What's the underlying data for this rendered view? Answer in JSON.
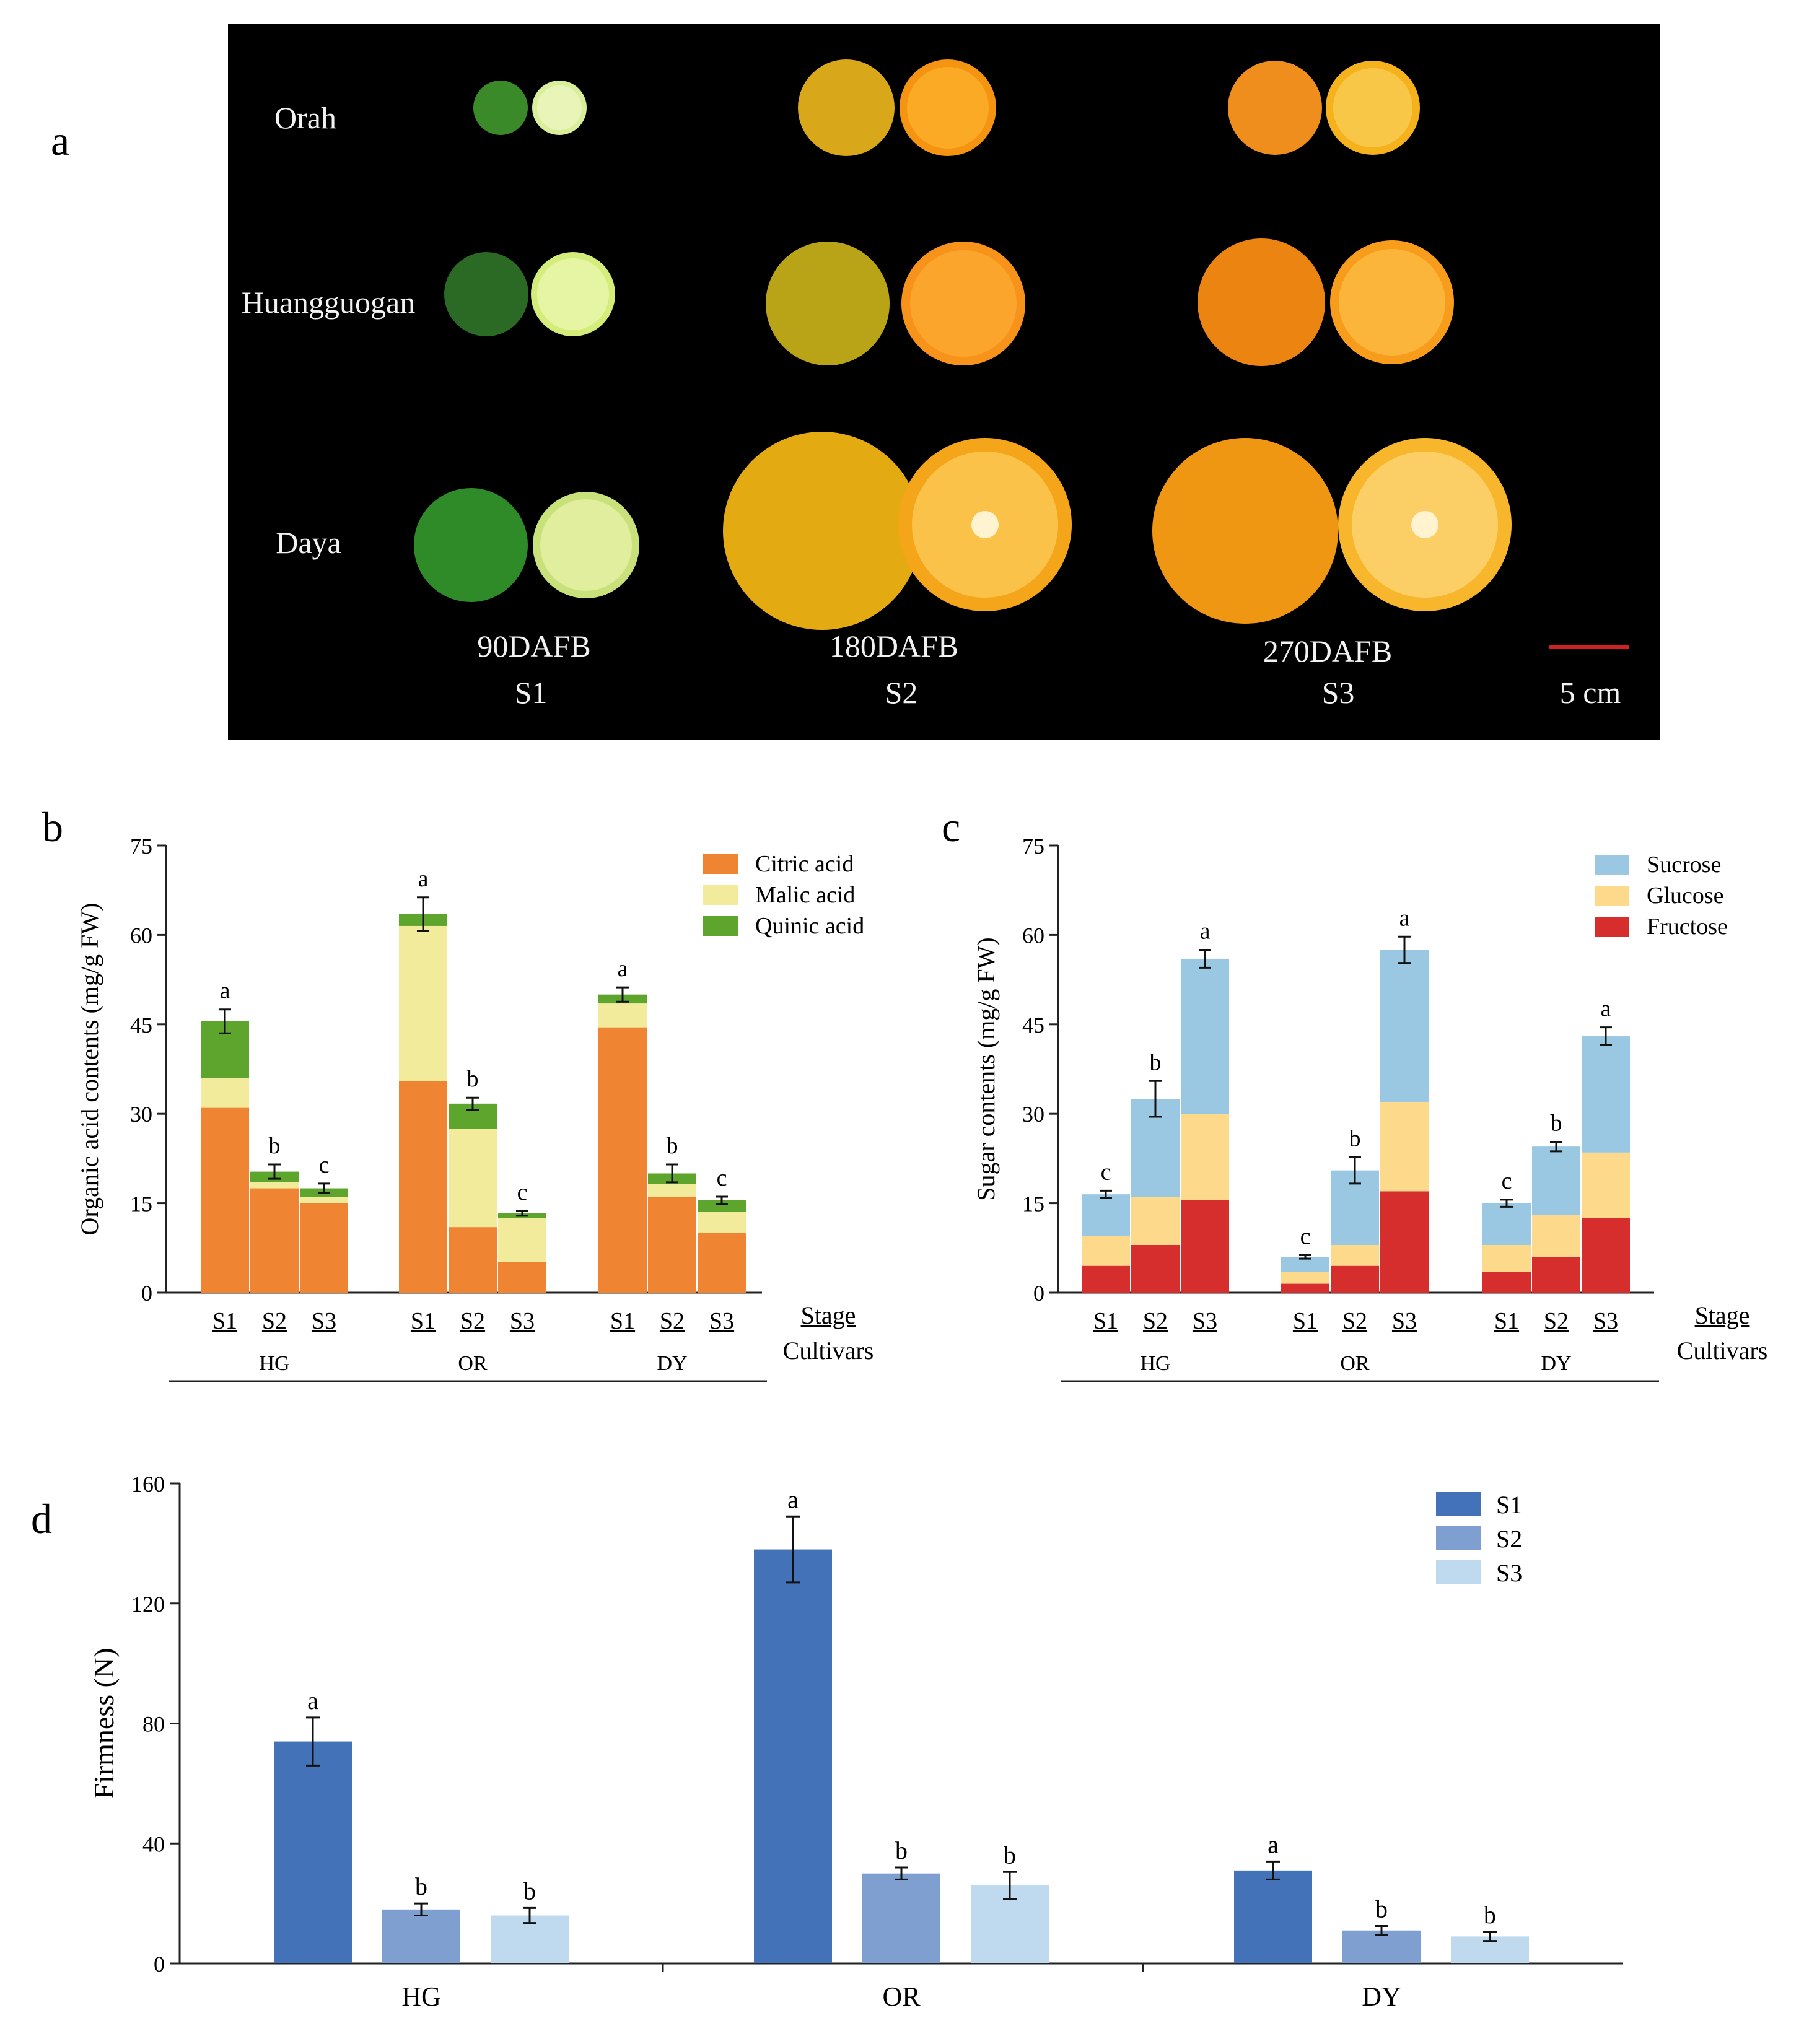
{
  "panel_labels": {
    "a": "a",
    "b": "b",
    "c": "c",
    "d": "d"
  },
  "photo_panel": {
    "rows": [
      "Orah",
      "Huangguogan",
      "Daya"
    ],
    "stages": [
      {
        "dafb": "90DAFB",
        "stage": "S1"
      },
      {
        "dafb": "180DAFB",
        "stage": "S2"
      },
      {
        "dafb": "270DAFB",
        "stage": "S3"
      }
    ],
    "scale_bar_label": "5 cm",
    "colors": {
      "background": "#000000",
      "scale_bar": "#cc2222",
      "label": "#f2f2f2"
    }
  },
  "chart_data": [
    {
      "id": "b",
      "type": "stacked-bar",
      "ylabel": "Organic acid contents (mg/g FW)",
      "ylim": [
        0,
        75
      ],
      "yticks": [
        "0",
        "15",
        "30",
        "45",
        "60",
        "75"
      ],
      "groups": [
        "HG",
        "OR",
        "DY"
      ],
      "stages": [
        "S1",
        "S2",
        "S3"
      ],
      "stage_axis_label": "Stage",
      "cultivar_axis_label": "Cultivars",
      "legend_position": "top-right",
      "series": [
        {
          "name": "Citric acid",
          "color": "#ef8433",
          "values": [
            31,
            17.5,
            15,
            35.5,
            11,
            5.2,
            44.5,
            16,
            10
          ]
        },
        {
          "name": "Malic acid",
          "color": "#f3eb9c",
          "values": [
            5,
            1,
            1,
            26,
            16.5,
            7.3,
            4,
            2.2,
            3.5
          ]
        },
        {
          "name": "Quinic  acid",
          "color": "#5ea52e",
          "values": [
            9.5,
            1.8,
            1.5,
            2,
            4.2,
            0.8,
            1.5,
            1.8,
            2
          ]
        }
      ],
      "errors": [
        2,
        1.2,
        0.8,
        2.8,
        1,
        0.4,
        1.2,
        1.5,
        0.6
      ],
      "letters": [
        "a",
        "b",
        "c",
        "a",
        "b",
        "c",
        "a",
        "b",
        "c"
      ]
    },
    {
      "id": "c",
      "type": "stacked-bar",
      "ylabel": "Sugar contents (mg/g FW)",
      "ylim": [
        0,
        75
      ],
      "yticks": [
        "0",
        "15",
        "30",
        "45",
        "60",
        "75"
      ],
      "groups": [
        "HG",
        "OR",
        "DY"
      ],
      "stages": [
        "S1",
        "S2",
        "S3"
      ],
      "stage_axis_label": "Stage",
      "cultivar_axis_label": "Cultivars",
      "legend_position": "top-right",
      "series": [
        {
          "name": "Fructose",
          "color": "#d62d2d",
          "values": [
            4.5,
            8,
            15.5,
            1.5,
            4.5,
            17,
            3.5,
            6,
            12.5
          ]
        },
        {
          "name": "Glucose",
          "color": "#fdd98c",
          "values": [
            5,
            8,
            14.5,
            2,
            3.5,
            15,
            4.5,
            7,
            11
          ]
        },
        {
          "name": "Sucrose",
          "color": "#9ac7e2",
          "values": [
            7,
            16.5,
            26,
            2.5,
            12.5,
            25.5,
            7,
            11.5,
            19.5
          ]
        }
      ],
      "legend_order": [
        "Sucrose",
        "Glucose",
        "Fructose"
      ],
      "errors": [
        0.6,
        3,
        1.5,
        0.3,
        2.2,
        2.2,
        0.6,
        0.8,
        1.5
      ],
      "letters": [
        "c",
        "b",
        "a",
        "c",
        "b",
        "a",
        "c",
        "b",
        "a"
      ]
    },
    {
      "id": "d",
      "type": "bar",
      "ylabel": "Firmness (N)",
      "ylim": [
        0,
        160
      ],
      "yticks": [
        "0",
        "40",
        "80",
        "120",
        "160"
      ],
      "categories": [
        "HG",
        "OR",
        "DY"
      ],
      "legend_position": "top-right",
      "series": [
        {
          "name": "S1",
          "color": "#4472b8",
          "values": [
            74,
            138,
            31
          ],
          "errors": [
            8,
            11,
            3
          ],
          "letters": [
            "a",
            "a",
            "a"
          ]
        },
        {
          "name": "S2",
          "color": "#7e9fd0",
          "values": [
            18,
            30,
            11
          ],
          "errors": [
            2,
            2,
            1.5
          ],
          "letters": [
            "b",
            "b",
            "b"
          ]
        },
        {
          "name": "S3",
          "color": "#bfd9ee",
          "values": [
            16,
            26,
            9
          ],
          "errors": [
            2.5,
            4.5,
            1.5
          ],
          "letters": [
            "b",
            "b",
            "b"
          ]
        }
      ]
    }
  ]
}
